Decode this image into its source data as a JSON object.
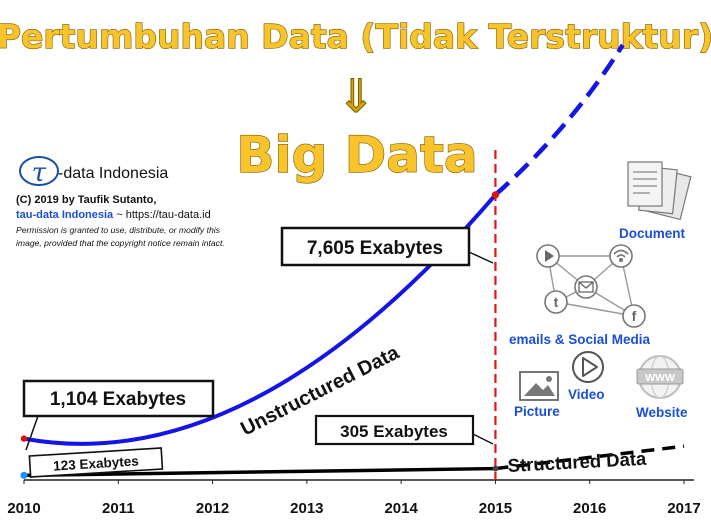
{
  "title": "Pertumbuhan Data (Tidak Terstruktur)",
  "arrow_glyph": "⇓",
  "subtitle": "Big Data",
  "credits": {
    "logo_letter": "τ",
    "logo_text": "-data Indonesia",
    "line1": "(C) 2019 by Taufik Sutanto,",
    "link_text": "tau-data Indonesia",
    "link_suffix": " ~ https://tau-data.id",
    "permission_1": "Permission is granted to use, distribute, or modify this",
    "permission_2": "image, provided that the copyright notice remain intact."
  },
  "chart_data": {
    "type": "line",
    "x": [
      2010,
      2011,
      2015
    ],
    "xlim": [
      2010,
      2017
    ],
    "ylim": [
      0,
      12000
    ],
    "tick_labels": [
      "2010",
      "2011",
      "2012",
      "2013",
      "2014",
      "2015",
      "2016",
      "2017"
    ],
    "marker_year": 2015,
    "series": [
      {
        "name": "Unstructured Data",
        "color": "#1414e6",
        "points": [
          [
            2010,
            1104
          ],
          [
            2011,
            1800
          ],
          [
            2015,
            7605
          ]
        ],
        "projection": [
          [
            2015,
            7605
          ],
          [
            2016.35,
            11600
          ]
        ]
      },
      {
        "name": "Structured Data",
        "color": "#000000",
        "points": [
          [
            2010,
            123
          ],
          [
            2015,
            305
          ]
        ],
        "projection": [
          [
            2015,
            305
          ],
          [
            2017,
            900
          ]
        ]
      }
    ],
    "annotations": [
      {
        "text": "7,605 Exabytes",
        "year": 2015,
        "value": 7605
      },
      {
        "text": "1,104 Exabytes",
        "year": 2010,
        "value": 1104
      },
      {
        "text": "305 Exabytes",
        "year": 2015,
        "value": 305
      },
      {
        "text": "123 Exabytes",
        "year": 2010,
        "value": 123
      }
    ]
  },
  "icons": {
    "document_label": "Document",
    "social_label": "emails & Social Media",
    "video_label": "Video",
    "picture_label": "Picture",
    "website_label": "Website",
    "www_text": "WWW",
    "twitter_letter": "t",
    "facebook_letter": "f"
  }
}
